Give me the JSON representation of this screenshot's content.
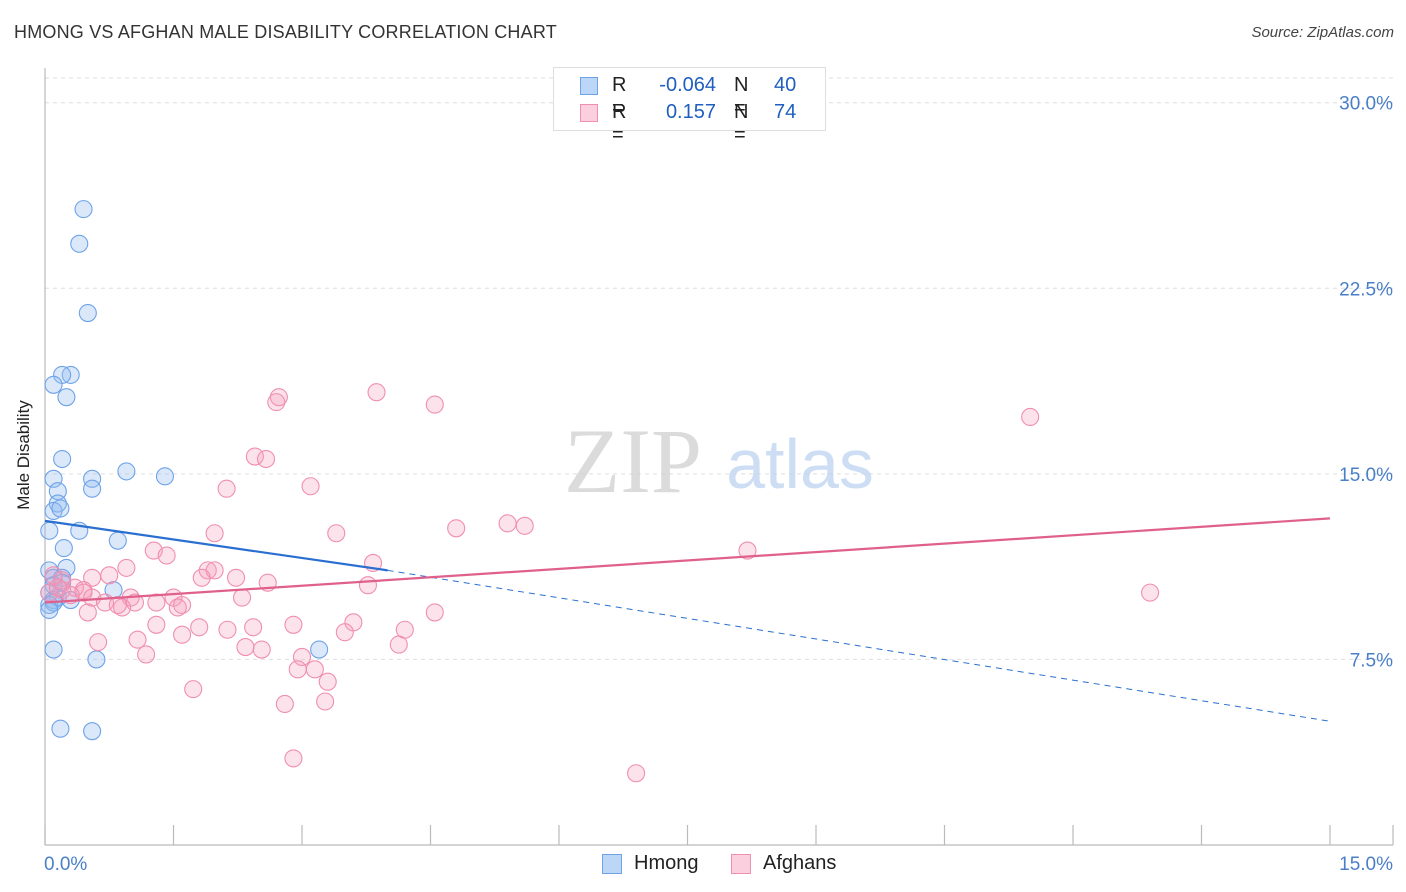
{
  "header": {
    "title": "HMONG VS AFGHAN MALE DISABILITY CORRELATION CHART",
    "source": "Source: ZipAtlas.com"
  },
  "legend": {
    "rows": [
      {
        "r_label": "R =",
        "r_value": "-0.064",
        "n_label": "N =",
        "n_value": "40",
        "color": "#6fa3e8"
      },
      {
        "r_label": "R =",
        "r_value": "0.157",
        "n_label": "N =",
        "n_value": "74",
        "color": "#f08fb0"
      }
    ]
  },
  "bottom_legend": {
    "items": [
      {
        "label": "Hmong",
        "color": "#6fa3e8"
      },
      {
        "label": "Afghans",
        "color": "#f08fb0"
      }
    ]
  },
  "watermark": {
    "zip": "ZIP",
    "atlas": "atlas"
  },
  "chart_data": {
    "type": "scatter",
    "title": "HMONG VS AFGHAN MALE DISABILITY CORRELATION CHART",
    "xlabel": "",
    "ylabel": "Male Disability",
    "xlim": [
      0,
      15
    ],
    "ylim": [
      0,
      31
    ],
    "x_tick_labels": [
      "0.0%",
      "15.0%"
    ],
    "y_ticks": [
      7.5,
      15.0,
      22.5,
      30.0
    ],
    "y_tick_labels": [
      "7.5%",
      "15.0%",
      "22.5%",
      "30.0%"
    ],
    "series": [
      {
        "name": "Hmong",
        "color": "#6fa3e8",
        "trend": {
          "x0": 0.0,
          "y0": 13.1,
          "x1": 4.0,
          "y1": 11.1,
          "dash_to_x": 15.0,
          "dash_to_y": 5.0,
          "color": "#2a6fd0"
        },
        "points": [
          [
            0.45,
            25.7
          ],
          [
            0.4,
            24.3
          ],
          [
            0.5,
            21.5
          ],
          [
            0.3,
            19.0
          ],
          [
            0.2,
            19.0
          ],
          [
            0.1,
            18.6
          ],
          [
            0.25,
            18.1
          ],
          [
            0.2,
            15.6
          ],
          [
            0.95,
            15.1
          ],
          [
            1.4,
            14.9
          ],
          [
            0.1,
            14.8
          ],
          [
            0.55,
            14.8
          ],
          [
            0.55,
            14.4
          ],
          [
            0.15,
            14.3
          ],
          [
            0.15,
            13.8
          ],
          [
            0.1,
            13.5
          ],
          [
            0.18,
            13.6
          ],
          [
            0.05,
            12.7
          ],
          [
            0.4,
            12.7
          ],
          [
            0.85,
            12.3
          ],
          [
            0.22,
            12.0
          ],
          [
            0.25,
            11.2
          ],
          [
            0.05,
            11.1
          ],
          [
            0.1,
            10.8
          ],
          [
            0.2,
            10.8
          ],
          [
            0.1,
            10.5
          ],
          [
            0.8,
            10.3
          ],
          [
            0.05,
            10.2
          ],
          [
            0.15,
            10.0
          ],
          [
            0.1,
            9.9
          ],
          [
            0.3,
            9.9
          ],
          [
            0.05,
            9.7
          ],
          [
            0.1,
            9.8
          ],
          [
            0.05,
            9.5
          ],
          [
            3.2,
            7.9
          ],
          [
            0.1,
            7.9
          ],
          [
            0.6,
            7.5
          ],
          [
            0.18,
            4.7
          ],
          [
            0.55,
            4.6
          ],
          [
            0.2,
            10.6
          ]
        ]
      },
      {
        "name": "Afghans",
        "color": "#f08fb0",
        "trend": {
          "x0": 0.0,
          "y0": 9.8,
          "x1": 15.0,
          "y1": 13.2,
          "color": "#e0608c"
        },
        "points": [
          [
            3.87,
            18.3
          ],
          [
            2.73,
            18.1
          ],
          [
            2.7,
            17.9
          ],
          [
            4.55,
            17.8
          ],
          [
            11.5,
            17.3
          ],
          [
            2.45,
            15.7
          ],
          [
            2.58,
            15.6
          ],
          [
            2.12,
            14.4
          ],
          [
            3.1,
            14.5
          ],
          [
            4.8,
            12.8
          ],
          [
            5.4,
            13.0
          ],
          [
            5.6,
            12.9
          ],
          [
            1.98,
            12.6
          ],
          [
            3.4,
            12.6
          ],
          [
            8.2,
            11.9
          ],
          [
            1.27,
            11.9
          ],
          [
            1.42,
            11.7
          ],
          [
            3.83,
            11.4
          ],
          [
            0.95,
            11.2
          ],
          [
            1.9,
            11.1
          ],
          [
            1.98,
            11.1
          ],
          [
            0.75,
            10.9
          ],
          [
            2.23,
            10.8
          ],
          [
            1.83,
            10.8
          ],
          [
            0.55,
            10.8
          ],
          [
            0.2,
            10.7
          ],
          [
            2.6,
            10.6
          ],
          [
            3.77,
            10.5
          ],
          [
            0.35,
            10.4
          ],
          [
            0.45,
            10.3
          ],
          [
            0.2,
            10.3
          ],
          [
            0.05,
            10.2
          ],
          [
            12.9,
            10.2
          ],
          [
            0.45,
            10.2
          ],
          [
            1.5,
            10.0
          ],
          [
            1.0,
            10.0
          ],
          [
            1.05,
            9.8
          ],
          [
            0.55,
            10.0
          ],
          [
            2.3,
            10.0
          ],
          [
            1.3,
            9.8
          ],
          [
            0.7,
            9.8
          ],
          [
            1.6,
            9.7
          ],
          [
            0.9,
            9.6
          ],
          [
            0.85,
            9.7
          ],
          [
            0.5,
            9.4
          ],
          [
            4.55,
            9.4
          ],
          [
            3.6,
            9.0
          ],
          [
            1.3,
            8.9
          ],
          [
            2.9,
            8.9
          ],
          [
            2.43,
            8.8
          ],
          [
            1.8,
            8.8
          ],
          [
            4.2,
            8.7
          ],
          [
            2.13,
            8.7
          ],
          [
            3.5,
            8.6
          ],
          [
            1.6,
            8.5
          ],
          [
            1.08,
            8.3
          ],
          [
            0.62,
            8.2
          ],
          [
            2.34,
            8.0
          ],
          [
            4.13,
            8.1
          ],
          [
            2.53,
            7.9
          ],
          [
            1.18,
            7.7
          ],
          [
            3.0,
            7.6
          ],
          [
            3.15,
            7.1
          ],
          [
            2.95,
            7.1
          ],
          [
            3.3,
            6.6
          ],
          [
            1.73,
            6.3
          ],
          [
            3.27,
            5.8
          ],
          [
            2.8,
            5.7
          ],
          [
            2.9,
            3.5
          ],
          [
            6.9,
            2.9
          ],
          [
            0.1,
            10.9
          ],
          [
            0.15,
            10.4
          ],
          [
            0.3,
            10.1
          ],
          [
            1.55,
            9.6
          ]
        ]
      }
    ]
  }
}
